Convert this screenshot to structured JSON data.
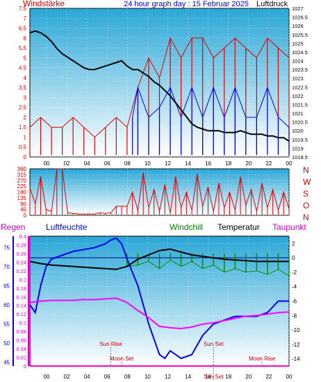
{
  "chart_data": [
    {
      "type": "line",
      "title": "24 hour graph day : 15 Februar 2025",
      "left_label": "Windstärke",
      "right_label": "Luftdruck",
      "x_ticks": [
        "00",
        "02",
        "04",
        "06",
        "08",
        "10",
        "12",
        "14",
        "16",
        "18",
        "20",
        "22",
        "00"
      ],
      "y_left_ticks": [
        "0",
        "0.5",
        "1",
        "1.5",
        "2",
        "2.5",
        "3",
        "3.5",
        "4",
        "4.5",
        "5",
        "5.5",
        "6",
        "6.5",
        "7",
        "7.5"
      ],
      "y_right_ticks": [
        "1018.5",
        "1019",
        "1019.5",
        "1020",
        "1020.5",
        "1021",
        "1021.5",
        "1022",
        "1022.5",
        "1023",
        "1023.5",
        "1024",
        "1024.5",
        "1025",
        "1025.5",
        "1026",
        "1026.5",
        "1027"
      ],
      "ylim_left": [
        0,
        7.5
      ],
      "ylim_right": [
        1018.5,
        1027
      ],
      "pressure_hpa": {
        "x_hours": [
          0,
          0.5,
          1,
          1.5,
          2,
          2.5,
          3,
          3.5,
          4,
          4.5,
          5,
          5.5,
          6,
          6.5,
          7,
          7.5,
          8,
          8.5,
          9,
          9.5,
          10,
          10.5,
          11,
          11.5,
          12,
          12.5,
          13,
          13.5,
          14,
          14.5,
          15,
          15.5,
          16,
          16.5,
          17,
          17.5,
          18,
          18.5,
          19,
          19.5,
          20,
          20.5,
          21,
          21.5,
          22,
          22.5,
          23,
          23.5,
          24
        ],
        "values": [
          1025.6,
          1025.7,
          1025.6,
          1025.4,
          1025.1,
          1024.7,
          1024.4,
          1024.2,
          1024.0,
          1023.8,
          1023.6,
          1023.5,
          1023.5,
          1023.6,
          1023.7,
          1023.8,
          1023.9,
          1024.0,
          1023.7,
          1023.5,
          1023.5,
          1023.3,
          1023.1,
          1022.8,
          1022.6,
          1022.3,
          1022.0,
          1021.6,
          1021.2,
          1020.8,
          1020.4,
          1020.2,
          1020.1,
          1020.0,
          1020.0,
          1020.0,
          1019.9,
          1019.9,
          1019.9,
          1020.0,
          1019.9,
          1019.8,
          1019.8,
          1019.8,
          1019.7,
          1019.7,
          1019.6,
          1019.6,
          1019.4
        ]
      },
      "wind_gust_mph": {
        "x_hours": [
          0,
          1,
          2,
          3,
          4,
          5,
          6,
          7,
          8,
          9,
          10,
          11,
          12,
          13,
          14,
          15,
          16,
          17,
          18,
          19,
          20,
          21,
          22,
          23,
          24
        ],
        "values": [
          1.5,
          2,
          1.5,
          1.5,
          2,
          1.5,
          1,
          1.5,
          2,
          1.5,
          3.5,
          5,
          4,
          6,
          5,
          6,
          6,
          5,
          5.5,
          6,
          5.5,
          5,
          6,
          5.5,
          5
        ]
      },
      "wind_avg_mph": {
        "x_hours": [
          9.5,
          10,
          11,
          12,
          13,
          14,
          15,
          16,
          17,
          18,
          19,
          20,
          21,
          22,
          23,
          24
        ],
        "values": [
          2,
          3.5,
          2,
          2.5,
          3.5,
          2,
          3.5,
          2,
          3.5,
          2,
          3.5,
          2,
          2,
          3.5,
          2,
          1.5
        ]
      }
    },
    {
      "type": "line",
      "x_ticks": [
        "00",
        "02",
        "04",
        "06",
        "08",
        "10",
        "12",
        "14",
        "16",
        "18",
        "20",
        "22",
        "00"
      ],
      "y_left_ticks": [
        "0",
        "45",
        "90",
        "135",
        "180",
        "225",
        "270",
        "315",
        "360"
      ],
      "y_right_labels": [
        "N",
        "W",
        "S",
        "O",
        "N"
      ],
      "ylim": [
        0,
        360
      ],
      "wind_direction_deg": {
        "x_hours": [
          0,
          0.5,
          1,
          1.5,
          2,
          2.5,
          3,
          3.5,
          4,
          4.5,
          5,
          5.5,
          6,
          6.5,
          7,
          7.5,
          8,
          8.5,
          9,
          9.5,
          10,
          10.5,
          11,
          11.5,
          12,
          12.5,
          13,
          13.5,
          14,
          14.5,
          15,
          15.5,
          16,
          16.5,
          17,
          17.5,
          18,
          18.5,
          19,
          19.5,
          20,
          20.5,
          21,
          21.5,
          22,
          22.5,
          23,
          23.5,
          24
        ],
        "values": [
          210,
          90,
          300,
          45,
          30,
          360,
          360,
          20,
          15,
          10,
          10,
          10,
          10,
          20,
          15,
          20,
          70,
          70,
          70,
          180,
          40,
          330,
          60,
          200,
          30,
          240,
          20,
          300,
          60,
          180,
          40,
          320,
          70,
          220,
          30,
          250,
          60,
          180,
          40,
          300,
          80,
          200,
          30,
          250,
          60,
          200,
          40,
          180,
          50
        ]
      }
    },
    {
      "type": "line",
      "labels": {
        "rain": "Regen",
        "humidity": "Luftfeuchte",
        "windchill": "Windchill",
        "temperature": "Temperatur",
        "dewpoint": "Taupunkt"
      },
      "x_ticks": [
        "00",
        "02",
        "04",
        "06",
        "08",
        "10",
        "12",
        "14",
        "16",
        "18",
        "20",
        "22",
        "00"
      ],
      "rain_ticks": [
        "0",
        "0.02",
        "0.04",
        "0.06",
        "0.08",
        "0.1",
        "0.12",
        "0.14",
        "0.16",
        "0.18",
        "0.2",
        "0.22",
        "0.24",
        "0.26",
        "0.28",
        "0.3"
      ],
      "humidity_ticks": [
        "45",
        "50",
        "55",
        "60",
        "65",
        "70",
        "75"
      ],
      "temp_ticks": [
        "2",
        "0",
        "-2",
        "-4",
        "-6",
        "-8",
        "-10",
        "-12",
        "-14"
      ],
      "ylim_temp": [
        -15,
        3
      ],
      "ylim_humidity": [
        44,
        78
      ],
      "ylim_rain": [
        0,
        0.3
      ],
      "annotations": [
        "Sun Rise",
        "Moon Set",
        "Sun Set",
        "Moon Rise",
        "Sun Set"
      ],
      "temperature_c": {
        "x_hours": [
          0,
          1,
          2,
          3,
          4,
          5,
          6,
          7,
          8,
          9,
          10,
          11,
          12,
          13,
          14,
          15,
          16,
          17,
          18,
          19,
          20,
          21,
          22,
          23,
          24
        ],
        "values": [
          -0.5,
          -0.8,
          -1.0,
          -1.1,
          -1.2,
          -1.3,
          -1.4,
          -1.5,
          -1.6,
          -1.2,
          -0.2,
          0.4,
          1.0,
          1.2,
          0.8,
          0.4,
          0.2,
          0,
          -0.2,
          -0.3,
          -0.4,
          -0.5,
          -0.5,
          -0.5,
          -0.5
        ]
      },
      "windchill_c": {
        "x_hours": [
          9,
          10,
          11,
          12,
          13,
          14,
          15,
          16,
          17,
          18,
          19,
          20,
          21,
          22,
          23,
          24
        ],
        "values": [
          -1.2,
          -1.0,
          -0.5,
          -1.5,
          -0.3,
          -1.2,
          -0.5,
          -1.5,
          -1.0,
          -2.0,
          -1.5,
          -2.0,
          -1.8,
          -2.3,
          -1.6,
          -2.5
        ]
      },
      "dewpoint_c": {
        "x_hours": [
          0,
          1,
          2,
          3,
          4,
          5,
          6,
          7,
          8,
          9,
          10,
          11,
          12,
          13,
          14,
          15,
          16,
          17,
          18,
          19,
          20,
          21,
          22,
          23,
          24
        ],
        "values": [
          -6.2,
          -6.0,
          -5.9,
          -5.9,
          -5.9,
          -5.8,
          -5.8,
          -5.7,
          -5.6,
          -6.2,
          -7.3,
          -8.3,
          -9.5,
          -9.7,
          -9.8,
          -9.6,
          -9.2,
          -9.0,
          -8.7,
          -8.4,
          -8.1,
          -8.0,
          -7.8,
          -7.6,
          -7.5
        ]
      },
      "humidity_pct": {
        "x_hours": [
          0,
          0.5,
          1,
          1.5,
          2,
          3,
          4,
          5,
          6,
          7,
          7.5,
          8,
          8.5,
          9,
          10,
          11,
          12,
          12.5,
          13,
          14,
          15,
          16,
          17,
          18,
          19,
          20,
          21,
          22,
          23,
          24
        ],
        "values": [
          60,
          58,
          65,
          70,
          72,
          73,
          74,
          74.5,
          75,
          76,
          77,
          77.5,
          76,
          72,
          65,
          55,
          47,
          46,
          48,
          46,
          47,
          52,
          55,
          56,
          57,
          57,
          57,
          58,
          61,
          61
        ]
      },
      "rain_in": {
        "x_hours": [
          0,
          0.01,
          24
        ],
        "values": [
          0.3,
          0,
          0
        ]
      }
    }
  ]
}
